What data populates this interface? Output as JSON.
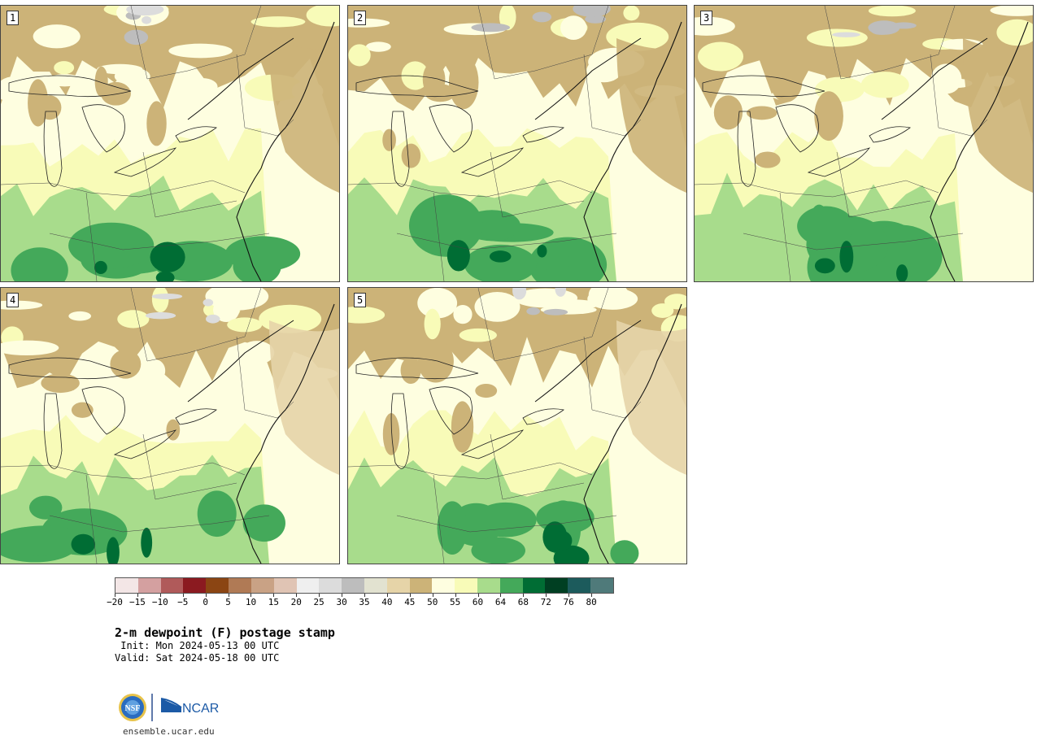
{
  "panels": [
    {
      "label": "1"
    },
    {
      "label": "2"
    },
    {
      "label": "3"
    },
    {
      "label": "4"
    },
    {
      "label": "5"
    }
  ],
  "colorbar": {
    "colors": [
      "#f3e6e6",
      "#d4a0a0",
      "#b05a5a",
      "#8b1a20",
      "#8b4513",
      "#b07a55",
      "#c9a285",
      "#e0c4b4",
      "#efefef",
      "#dcdcdc",
      "#bdbdbd",
      "#e2e2d0",
      "#e6d4a8",
      "#ccb378",
      "#fefee0",
      "#f8fbb8",
      "#a8dc8c",
      "#44a95a",
      "#006d34",
      "#003f22",
      "#1c5b5c",
      "#4f7a7a"
    ],
    "ticks": [
      "−20",
      "−15",
      "−10",
      "−5",
      "0",
      "5",
      "10",
      "15",
      "20",
      "25",
      "30",
      "35",
      "40",
      "45",
      "50",
      "55",
      "60",
      "64",
      "68",
      "72",
      "76",
      "80"
    ]
  },
  "title": "2-m dewpoint (F) postage stamp",
  "init": " Init: Mon 2024-05-13 00 UTC",
  "valid": "Valid: Sat 2024-05-18 00 UTC",
  "logo": {
    "nsf": "NSF",
    "ncar": "NCAR"
  },
  "site": "ensemble.ucar.edu"
}
